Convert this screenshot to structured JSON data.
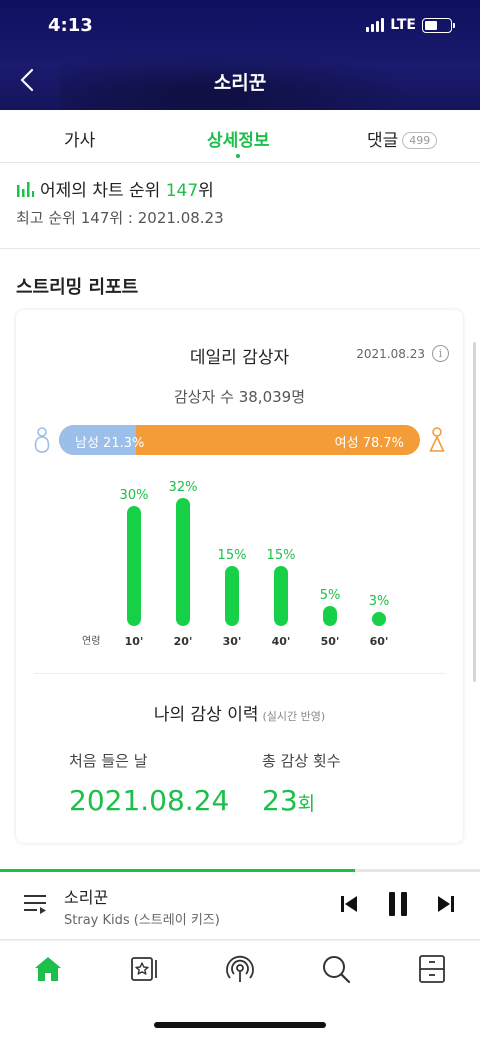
{
  "status": {
    "time": "4:13",
    "network": "LTE"
  },
  "header": {
    "title": "소리꾼"
  },
  "tabs": [
    {
      "label": "가사"
    },
    {
      "label": "상세정보",
      "active": true
    },
    {
      "label": "댓글",
      "badge": "499"
    }
  ],
  "chart_rank": {
    "prefix": "어제의 차트 순위",
    "rank": "147",
    "suffix": "위",
    "best": "최고 순위 147위 : 2021.08.23"
  },
  "report": {
    "section_title": "스트리밍 리포트",
    "daily_title": "데일리 감상자",
    "date": "2021.08.23",
    "listeners": "감상자 수 38,039명",
    "gender": {
      "male_label": "남성 21.3%",
      "female_label": "여성 78.7%",
      "male_percent": 21.3,
      "female_percent": 78.7
    },
    "age_title": "연령",
    "my_history": {
      "title": "나의 감상 이력",
      "subtitle": "(실시간 반영)",
      "first_label": "처음 들은 날",
      "first_value": "2021.08.24",
      "count_label": "총 감상 횟수",
      "count_value": "23",
      "count_unit": "회"
    }
  },
  "chart_data": {
    "type": "bar",
    "categories": [
      "10'",
      "20'",
      "30'",
      "40'",
      "50'",
      "60'"
    ],
    "values": [
      30,
      32,
      15,
      15,
      5,
      3
    ],
    "value_labels": [
      "30%",
      "32%",
      "15%",
      "15%",
      "5%",
      "3%"
    ],
    "xlabel": "연령",
    "ylabel": "",
    "ylim": [
      0,
      32
    ],
    "grid": false
  },
  "player": {
    "title": "소리꾼",
    "artist": "Stray Kids (스트레이 키즈)",
    "progress": 0.74
  },
  "nav": [
    "home-icon",
    "library-icon",
    "broadcast-icon",
    "search-icon",
    "storage-icon"
  ],
  "colors": {
    "accent": "#1dbf4b",
    "male": "#9bbfe8",
    "female": "#f39c38",
    "header": "#14145e"
  }
}
